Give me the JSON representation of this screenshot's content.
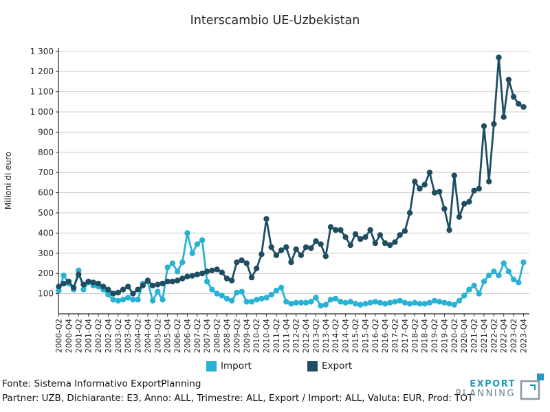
{
  "chart_data": {
    "type": "line",
    "title": "Interscambio UE-Uzbekistan",
    "ylabel": "Milioni di euro",
    "ylim": [
      0,
      1300
    ],
    "ytick_step": 100,
    "ytick_labels": [
      "100",
      "200",
      "300",
      "400",
      "500",
      "600",
      "700",
      "800",
      "900",
      "1 000",
      "1 100",
      "1 200",
      "1 300"
    ],
    "grid": true,
    "legend_position": "bottom",
    "x_tick_every": 2,
    "x": [
      "2000-Q2",
      "2000-Q3",
      "2000-Q4",
      "2001-Q1",
      "2001-Q2",
      "2001-Q3",
      "2001-Q4",
      "2002-Q1",
      "2002-Q2",
      "2002-Q3",
      "2002-Q4",
      "2003-Q1",
      "2003-Q2",
      "2003-Q3",
      "2003-Q4",
      "2004-Q1",
      "2004-Q2",
      "2004-Q3",
      "2004-Q4",
      "2005-Q1",
      "2005-Q2",
      "2005-Q3",
      "2005-Q4",
      "2006-Q1",
      "2006-Q2",
      "2006-Q3",
      "2006-Q4",
      "2007-Q1",
      "2007-Q2",
      "2007-Q3",
      "2007-Q4",
      "2008-Q1",
      "2008-Q2",
      "2008-Q3",
      "2008-Q4",
      "2009-Q1",
      "2009-Q2",
      "2009-Q3",
      "2009-Q4",
      "2010-Q1",
      "2010-Q2",
      "2010-Q3",
      "2010-Q4",
      "2011-Q1",
      "2011-Q2",
      "2011-Q3",
      "2011-Q4",
      "2012-Q1",
      "2012-Q2",
      "2012-Q3",
      "2012-Q4",
      "2013-Q1",
      "2013-Q2",
      "2013-Q3",
      "2013-Q4",
      "2014-Q1",
      "2014-Q2",
      "2014-Q3",
      "2014-Q4",
      "2015-Q1",
      "2015-Q2",
      "2015-Q3",
      "2015-Q4",
      "2016-Q1",
      "2016-Q2",
      "2016-Q3",
      "2016-Q4",
      "2017-Q1",
      "2017-Q2",
      "2017-Q3",
      "2017-Q4",
      "2018-Q1",
      "2018-Q2",
      "2018-Q3",
      "2018-Q4",
      "2019-Q1",
      "2019-Q2",
      "2019-Q3",
      "2019-Q4",
      "2020-Q1",
      "2020-Q2",
      "2020-Q3",
      "2020-Q4",
      "2021-Q1",
      "2021-Q2",
      "2021-Q3",
      "2021-Q4",
      "2022-Q1",
      "2022-Q2",
      "2022-Q3",
      "2022-Q4",
      "2023-Q1",
      "2023-Q2",
      "2023-Q3",
      "2023-Q4"
    ],
    "series": [
      {
        "name": "Import",
        "color": "#29b2d4",
        "values": [
          115,
          190,
          150,
          120,
          215,
          120,
          155,
          140,
          135,
          120,
          95,
          70,
          65,
          70,
          80,
          70,
          70,
          150,
          160,
          65,
          110,
          70,
          230,
          250,
          210,
          255,
          400,
          300,
          345,
          365,
          160,
          120,
          100,
          90,
          75,
          65,
          105,
          110,
          60,
          60,
          70,
          75,
          80,
          95,
          115,
          130,
          60,
          50,
          55,
          55,
          55,
          60,
          80,
          40,
          45,
          70,
          75,
          60,
          55,
          60,
          50,
          45,
          50,
          55,
          60,
          55,
          50,
          55,
          60,
          65,
          55,
          50,
          55,
          50,
          50,
          55,
          65,
          60,
          55,
          50,
          45,
          65,
          90,
          120,
          140,
          100,
          160,
          190,
          210,
          190,
          250,
          210,
          170,
          155,
          255
        ]
      },
      {
        "name": "Export",
        "color": "#1f4e63",
        "values": [
          135,
          150,
          160,
          130,
          195,
          145,
          160,
          155,
          150,
          135,
          120,
          100,
          105,
          120,
          135,
          100,
          120,
          140,
          165,
          140,
          145,
          150,
          160,
          160,
          165,
          175,
          185,
          188,
          195,
          200,
          210,
          215,
          220,
          205,
          175,
          165,
          255,
          265,
          250,
          180,
          225,
          295,
          470,
          330,
          290,
          315,
          330,
          255,
          320,
          290,
          330,
          325,
          360,
          345,
          285,
          430,
          415,
          415,
          380,
          340,
          395,
          370,
          380,
          415,
          350,
          390,
          350,
          340,
          355,
          390,
          410,
          500,
          655,
          620,
          640,
          700,
          600,
          605,
          520,
          415,
          685,
          480,
          545,
          555,
          610,
          620,
          930,
          655,
          940,
          1270,
          975,
          1160,
          1075,
          1040,
          1025
        ]
      }
    ]
  },
  "footer": {
    "line1": "Fonte: Sistema Informativo ExportPlanning",
    "line2": "Partner: UZB, Dichiarante: E3, Anno: ALL, Trimestre: ALL, Export / Import: ALL, Valuta: EUR, Prod: TOT"
  },
  "logo": {
    "line1": "EXPORT",
    "line2": "PLANNING",
    "accent_color": "#2499bd",
    "gray_color": "#67808e",
    "icon_gray": "#8b9aa3"
  }
}
